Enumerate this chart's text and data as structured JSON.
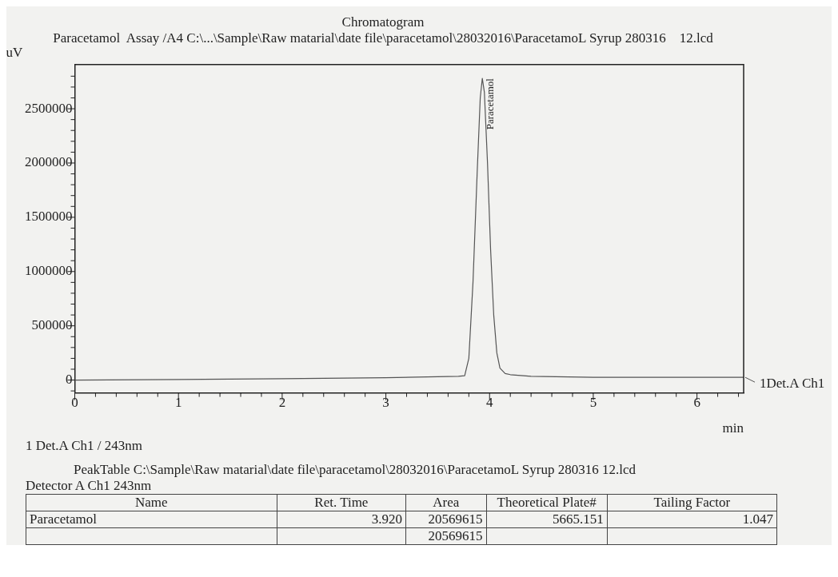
{
  "chart_data": {
    "type": "line",
    "title": "Chromatogram",
    "subtitle": "Paracetamol  Assay /A4 C:\\...\\Sample\\Raw matarial\\date file\\paracetamol\\28032016\\ParacetamoL Syrup 280316    12.lcd",
    "xlabel": "min",
    "ylabel": "uV",
    "x": [
      0,
      1,
      2,
      3,
      3.7,
      3.76,
      3.8,
      3.84,
      3.88,
      3.91,
      3.93,
      3.95,
      3.98,
      4.01,
      4.04,
      4.07,
      4.1,
      4.15,
      4.2,
      4.4,
      5,
      6,
      6.45
    ],
    "series": [
      {
        "name": "1Det.A Ch1",
        "color": "#555555",
        "values": [
          0,
          5000,
          12000,
          22000,
          35000,
          40000,
          200000,
          900000,
          1900000,
          2600000,
          2780000,
          2650000,
          2000000,
          1200000,
          600000,
          250000,
          110000,
          60000,
          50000,
          35000,
          25000,
          25000,
          25000
        ]
      }
    ],
    "xlim": [
      0,
      6.45
    ],
    "ylim": [
      -118000,
      2907000
    ],
    "xticks": [
      0,
      {
        "value": 0.2,
        "label": null
      },
      {
        "value": 0.4,
        "label": null
      },
      {
        "value": 0.6,
        "label": null
      },
      {
        "value": 0.8,
        "label": null
      },
      1,
      {
        "value": 1.2,
        "label": null
      },
      {
        "value": 1.4,
        "label": null
      },
      {
        "value": 1.6,
        "label": null
      },
      {
        "value": 1.8,
        "label": null
      },
      2,
      {
        "value": 2.2,
        "label": null
      },
      {
        "value": 2.4,
        "label": null
      },
      {
        "value": 2.6,
        "label": null
      },
      {
        "value": 2.8,
        "label": null
      },
      3,
      {
        "value": 3.2,
        "label": null
      },
      {
        "value": 3.4,
        "label": null
      },
      {
        "value": 3.6,
        "label": null
      },
      {
        "value": 3.8,
        "label": null
      },
      4,
      {
        "value": 4.2,
        "label": null
      },
      {
        "value": 4.4,
        "label": null
      },
      {
        "value": 4.6,
        "label": null
      },
      {
        "value": 4.8,
        "label": null
      },
      5,
      {
        "value": 5.2,
        "label": null
      },
      {
        "value": 5.4,
        "label": null
      },
      {
        "value": 5.6,
        "label": null
      },
      {
        "value": 5.8,
        "label": null
      },
      6,
      {
        "value": 6.2,
        "label": null
      },
      {
        "value": 6.4,
        "label": null
      }
    ],
    "yticks": [
      {
        "value": -100000,
        "label": null
      },
      0,
      {
        "value": 100000,
        "label": null
      },
      {
        "value": 200000,
        "label": null
      },
      {
        "value": 300000,
        "label": null
      },
      {
        "value": 400000,
        "label": null
      },
      500000,
      {
        "value": 600000,
        "label": null
      },
      {
        "value": 700000,
        "label": null
      },
      {
        "value": 800000,
        "label": null
      },
      {
        "value": 900000,
        "label": null
      },
      1000000,
      {
        "value": 1100000,
        "label": null
      },
      {
        "value": 1200000,
        "label": null
      },
      {
        "value": 1300000,
        "label": null
      },
      {
        "value": 1400000,
        "label": null
      },
      1500000,
      {
        "value": 1600000,
        "label": null
      },
      {
        "value": 1700000,
        "label": null
      },
      {
        "value": 1800000,
        "label": null
      },
      {
        "value": 1900000,
        "label": null
      },
      2000000,
      {
        "value": 2100000,
        "label": null
      },
      {
        "value": 2200000,
        "label": null
      },
      {
        "value": 2300000,
        "label": null
      },
      {
        "value": 2400000,
        "label": null
      },
      2500000,
      {
        "value": 2600000,
        "label": null
      },
      {
        "value": 2700000,
        "label": null
      },
      {
        "value": 2800000,
        "label": null
      }
    ],
    "grid": false,
    "legend": "right",
    "marker": "none",
    "line_style": "solid",
    "annotations": [
      {
        "text": "Paracetamol",
        "x": 3.93,
        "y": 2780000
      },
      "1   Det.A Ch1 / 243nm",
      "PeakTable C:\\Sample\\Raw matarial\\date file\\paracetamol\\28032016\\ParacetamoL Syrup 280316    12.lcd",
      "Detector A Ch1 243nm",
      "Name",
      "Ret. Time",
      "Area",
      "Theoretical Plate#",
      "Tailing Factor",
      "Paracetamol",
      "3.920",
      "20569615",
      "5665.151",
      "1.047",
      "20569615"
    ]
  }
}
